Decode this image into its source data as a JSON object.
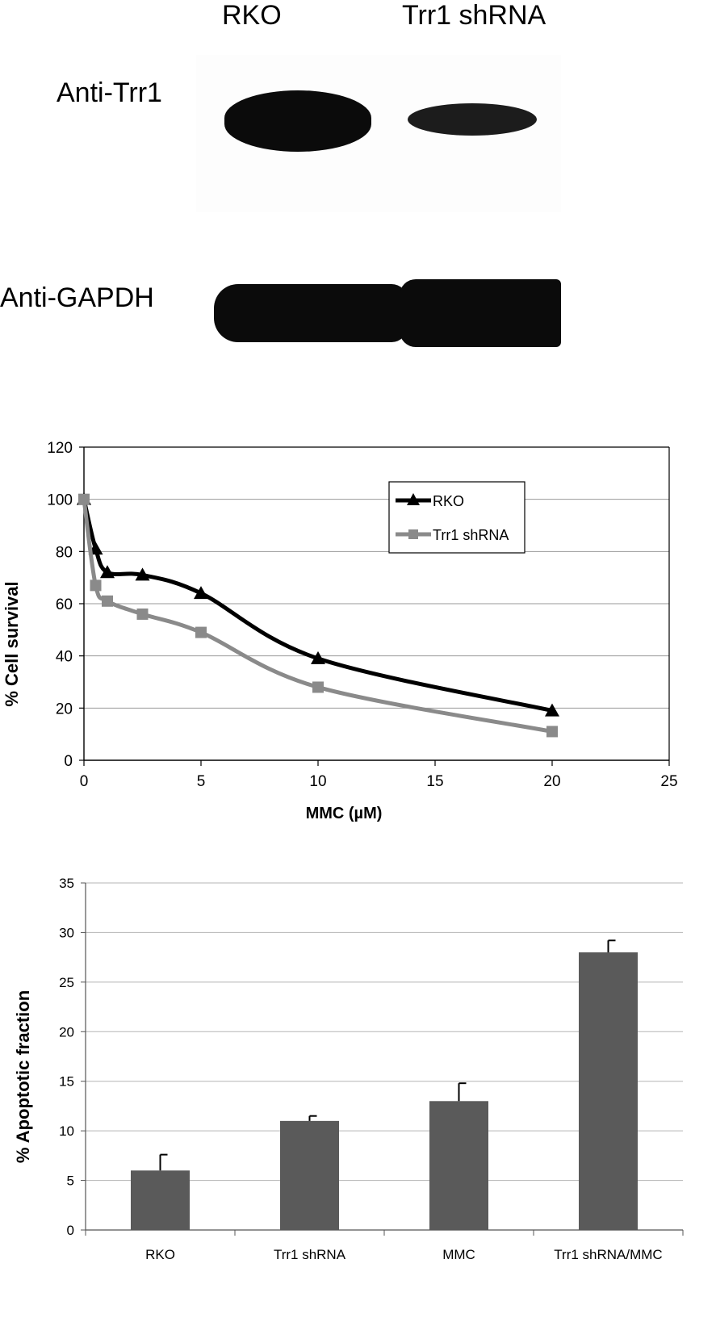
{
  "blot": {
    "lane_labels": [
      "RKO",
      "Trr1 shRNA"
    ],
    "row_labels": [
      "Anti-Trr1",
      "Anti-GAPDH"
    ]
  },
  "chart_data": [
    {
      "type": "line",
      "xlabel": "MMC (µM)",
      "ylabel": "% Cell survival",
      "xlim": [
        0,
        25
      ],
      "ylim": [
        0,
        120
      ],
      "xticks": [
        0,
        5,
        10,
        15,
        20,
        25
      ],
      "yticks": [
        0,
        20,
        40,
        60,
        80,
        100,
        120
      ],
      "grid": true,
      "legend_position": "top-right",
      "series": [
        {
          "name": "RKO",
          "marker": "triangle",
          "color": "#000000",
          "x": [
            0,
            0.5,
            1,
            2.5,
            5,
            10,
            20
          ],
          "y": [
            100,
            81,
            72,
            71,
            64,
            39,
            19
          ]
        },
        {
          "name": "Trr1 shRNA",
          "marker": "square",
          "color": "#8a8a8a",
          "x": [
            0,
            0.5,
            1,
            2.5,
            5,
            10,
            20
          ],
          "y": [
            100,
            67,
            61,
            56,
            49,
            28,
            11
          ]
        }
      ]
    },
    {
      "type": "bar",
      "xlabel": "",
      "ylabel": "% Apoptotic fraction",
      "ylim": [
        0,
        35
      ],
      "yticks": [
        0,
        5,
        10,
        15,
        20,
        25,
        30,
        35
      ],
      "grid": true,
      "bar_color": "#5a5a5a",
      "categories": [
        "RKO",
        "Trr1 shRNA",
        "MMC",
        "Trr1 shRNA/MMC"
      ],
      "values": [
        6,
        11,
        13,
        28
      ],
      "errors": [
        1.6,
        0.5,
        1.8,
        1.2
      ]
    }
  ]
}
